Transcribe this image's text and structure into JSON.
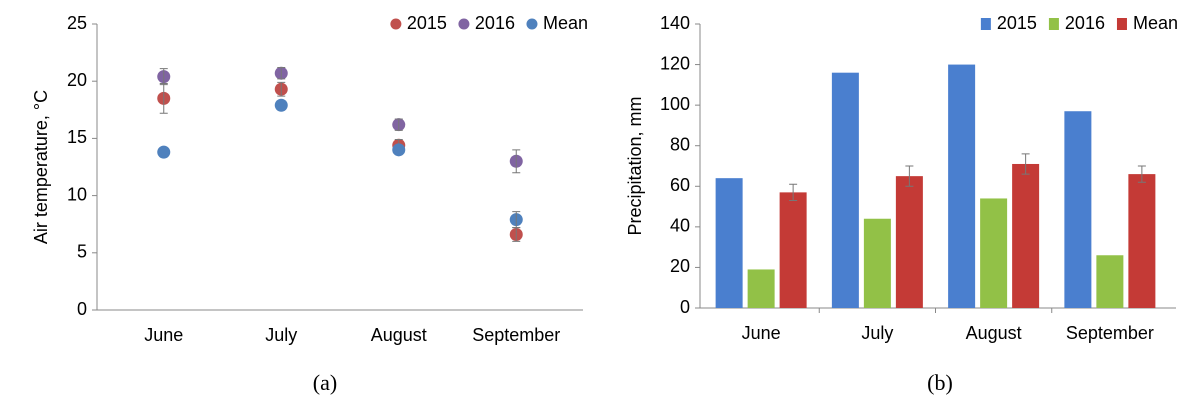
{
  "chart_data": [
    {
      "type": "scatter",
      "caption": "(a)",
      "y_label": "Air temperature, °C",
      "categories": [
        "June",
        "July",
        "August",
        "September"
      ],
      "series": [
        {
          "name": "2015",
          "color": "#c0504d",
          "values": [
            18.5,
            19.3,
            14.4,
            6.6
          ],
          "errors": [
            1.3,
            0.6,
            0.5,
            0.6
          ]
        },
        {
          "name": "2016",
          "color": "#8064a2",
          "values": [
            20.4,
            20.7,
            16.2,
            13.0
          ],
          "errors": [
            0.7,
            0.5,
            0.5,
            1.0
          ]
        },
        {
          "name": "Mean",
          "color": "#4f81bd",
          "values": [
            13.8,
            17.9,
            14.0,
            7.9
          ],
          "errors": [
            null,
            null,
            null,
            0.7
          ]
        }
      ],
      "ylim": [
        0,
        25
      ],
      "yticks": [
        0,
        5,
        10,
        15,
        20,
        25
      ],
      "legend": "top-right"
    },
    {
      "type": "bar",
      "caption": "(b)",
      "y_label": "Precipitation, mm",
      "categories": [
        "June",
        "July",
        "August",
        "September"
      ],
      "series": [
        {
          "name": "2015",
          "color": "#4a7fcf",
          "values": [
            64,
            116,
            120,
            97
          ],
          "errors": [
            null,
            null,
            null,
            null
          ]
        },
        {
          "name": "2016",
          "color": "#92c147",
          "values": [
            19,
            44,
            54,
            26
          ],
          "errors": [
            null,
            null,
            null,
            null
          ]
        },
        {
          "name": "Mean",
          "color": "#c43a36",
          "values": [
            57,
            65,
            71,
            66
          ],
          "errors": [
            4,
            5,
            5,
            4
          ]
        }
      ],
      "ylim": [
        0,
        140
      ],
      "yticks": [
        0,
        20,
        40,
        60,
        80,
        100,
        120,
        140
      ],
      "legend": "top-right"
    }
  ]
}
